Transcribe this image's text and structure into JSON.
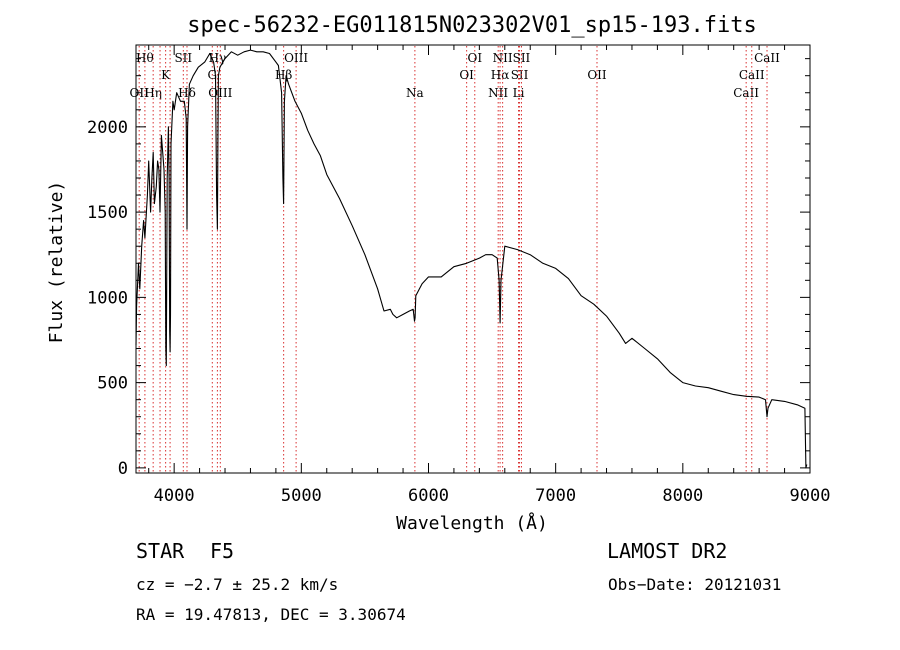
{
  "chart_data": {
    "type": "line",
    "title": "spec-56232-EG011815N023302V01_sp15-193.fits",
    "xlabel": "Wavelength (Å)",
    "ylabel": "Flux (relative)",
    "xlim": [
      3700,
      9000
    ],
    "ylim": [
      -30,
      2480
    ],
    "grid": false,
    "x_ticks": [
      4000,
      5000,
      6000,
      7000,
      8000,
      9000
    ],
    "y_ticks": [
      0,
      500,
      1000,
      1500,
      2000
    ],
    "series": [
      {
        "x": [
          3700,
          3705,
          3720,
          3730,
          3745,
          3760,
          3770,
          3790,
          3800,
          3815,
          3825,
          3835,
          3845,
          3860,
          3870,
          3880,
          3889,
          3900,
          3910,
          3920,
          3930,
          3934,
          3938,
          3945,
          3955,
          3960,
          3965,
          3968,
          3971,
          3975,
          3990,
          4000,
          4020,
          4050,
          4080,
          4095,
          4101,
          4106,
          4120,
          4150,
          4190,
          4240,
          4280,
          4310,
          4325,
          4334,
          4340,
          4344,
          4348,
          4360,
          4400,
          4450,
          4500,
          4550,
          4600,
          4650,
          4700,
          4750,
          4800,
          4820,
          4845,
          4855,
          4861,
          4867,
          4880,
          4900,
          4950,
          5000,
          5050,
          5100,
          5150,
          5200,
          5300,
          5400,
          5500,
          5600,
          5650,
          5700,
          5720,
          5750,
          5800,
          5850,
          5880,
          5890,
          5895,
          5900,
          5950,
          6000,
          6100,
          6200,
          6300,
          6400,
          6450,
          6500,
          6540,
          6555,
          6563,
          6570,
          6600,
          6700,
          6800,
          6900,
          7000,
          7100,
          7200,
          7300,
          7400,
          7500,
          7550,
          7600,
          7700,
          7800,
          7900,
          8000,
          8100,
          8200,
          8300,
          8400,
          8500,
          8600,
          8650,
          8662,
          8670,
          8700,
          8800,
          8900,
          8960,
          8968,
          8975
        ],
        "y": [
          720,
          950,
          1200,
          1050,
          1300,
          1450,
          1350,
          1600,
          1800,
          1500,
          1700,
          1850,
          1550,
          1650,
          1800,
          1750,
          1500,
          1950,
          1850,
          1750,
          1500,
          700,
          600,
          1700,
          2000,
          1700,
          800,
          680,
          900,
          1900,
          2150,
          2100,
          2200,
          2150,
          2150,
          2050,
          1400,
          2000,
          2250,
          2300,
          2350,
          2380,
          2430,
          2380,
          2300,
          1600,
          1400,
          1900,
          2300,
          2350,
          2400,
          2440,
          2420,
          2440,
          2450,
          2440,
          2440,
          2430,
          2380,
          2360,
          2200,
          1700,
          1550,
          2150,
          2300,
          2250,
          2150,
          2080,
          1980,
          1900,
          1830,
          1720,
          1580,
          1420,
          1250,
          1050,
          920,
          930,
          900,
          880,
          900,
          920,
          930,
          860,
          880,
          1010,
          1080,
          1120,
          1120,
          1180,
          1200,
          1230,
          1250,
          1250,
          1230,
          1100,
          850,
          1100,
          1300,
          1280,
          1250,
          1200,
          1170,
          1110,
          1010,
          960,
          890,
          790,
          730,
          760,
          700,
          640,
          560,
          500,
          480,
          470,
          450,
          430,
          420,
          415,
          400,
          300,
          350,
          400,
          390,
          370,
          350,
          0,
          20
        ]
      }
    ],
    "line_markers": [
      {
        "x": 3725,
        "label": "OII",
        "row": 2
      },
      {
        "x": 3770,
        "label": "Hθ",
        "row": 0
      },
      {
        "x": 3835,
        "label": "Hη",
        "row": 2
      },
      {
        "x": 3889,
        "label": "",
        "row": -1
      },
      {
        "x": 3933,
        "label": "K",
        "row": 1
      },
      {
        "x": 3968,
        "label": "",
        "row": -1
      },
      {
        "x": 4072,
        "label": "SII",
        "row": 0
      },
      {
        "x": 4101,
        "label": "Hδ",
        "row": 2
      },
      {
        "x": 4300,
        "label": "G",
        "row": 1
      },
      {
        "x": 4340,
        "label": "Hγ",
        "row": 0
      },
      {
        "x": 4363,
        "label": "OIII",
        "row": 2
      },
      {
        "x": 4861,
        "label": "Hβ",
        "row": 1
      },
      {
        "x": 4959,
        "label": "OIII",
        "row": 0
      },
      {
        "x": 5893,
        "label": "Na",
        "row": 2
      },
      {
        "x": 6300,
        "label": "OI",
        "row": 1
      },
      {
        "x": 6364,
        "label": "OI",
        "row": 0
      },
      {
        "x": 6548,
        "label": "NII",
        "row": 2
      },
      {
        "x": 6563,
        "label": "Hα",
        "row": 1
      },
      {
        "x": 6583,
        "label": "NII",
        "row": 0
      },
      {
        "x": 6708,
        "label": "Li",
        "row": 2
      },
      {
        "x": 6716,
        "label": "SII",
        "row": 1
      },
      {
        "x": 6731,
        "label": "SII",
        "row": 0
      },
      {
        "x": 7325,
        "label": "OII",
        "row": 1
      },
      {
        "x": 8498,
        "label": "CaII",
        "row": 2
      },
      {
        "x": 8542,
        "label": "CaII",
        "row": 1
      },
      {
        "x": 8662,
        "label": "CaII",
        "row": 0
      }
    ]
  },
  "info": {
    "object_type": "STAR",
    "subclass": "F5",
    "survey": "LAMOST DR2",
    "cz": "cz = −2.7 ± 25.2 km/s",
    "obs_date": "Obs−Date: 20121031",
    "radec": "RA =  19.47813, DEC =   3.30674"
  }
}
